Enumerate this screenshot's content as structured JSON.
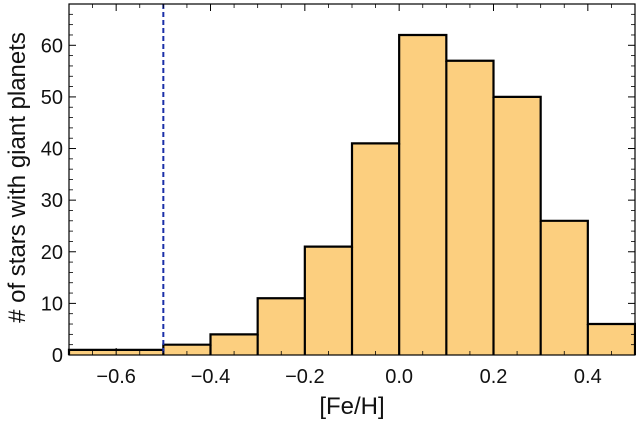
{
  "colors": {
    "bar_fill": "#FCCF7F",
    "bar_stroke": "#000000",
    "threshold_line": "#1B2FA8",
    "frame": "#000000",
    "background": "#FFFFFF"
  },
  "chart_data": {
    "type": "bar",
    "subtype": "histogram",
    "title": "",
    "xlabel": "[Fe/H]",
    "ylabel": "# of stars with giant planets",
    "xlim": [
      -0.7,
      0.5
    ],
    "ylim": [
      0,
      68
    ],
    "xticks": [
      -0.6,
      -0.4,
      -0.2,
      0.0,
      0.2,
      0.4
    ],
    "xtick_labels": [
      "−0.6",
      "−0.4",
      "−0.2",
      "0.0",
      "0.2",
      "0.4"
    ],
    "yticks": [
      0,
      10,
      20,
      30,
      40,
      50,
      60
    ],
    "ytick_labels": [
      "0",
      "10",
      "20",
      "30",
      "40",
      "50",
      "60"
    ],
    "bins": [
      {
        "x0": -0.7,
        "x1": -0.5,
        "value": 1
      },
      {
        "x0": -0.5,
        "x1": -0.4,
        "value": 2
      },
      {
        "x0": -0.4,
        "x1": -0.3,
        "value": 4
      },
      {
        "x0": -0.3,
        "x1": -0.2,
        "value": 11
      },
      {
        "x0": -0.2,
        "x1": -0.1,
        "value": 21
      },
      {
        "x0": -0.1,
        "x1": 0.0,
        "value": 41
      },
      {
        "x0": 0.0,
        "x1": 0.1,
        "value": 62
      },
      {
        "x0": 0.1,
        "x1": 0.2,
        "value": 57
      },
      {
        "x0": 0.2,
        "x1": 0.3,
        "value": 50
      },
      {
        "x0": 0.3,
        "x1": 0.4,
        "value": 26
      },
      {
        "x0": 0.4,
        "x1": 0.5,
        "value": 6
      }
    ],
    "threshold_x": -0.5,
    "threshold_style": "dashed",
    "grid": false,
    "legend": "none"
  }
}
